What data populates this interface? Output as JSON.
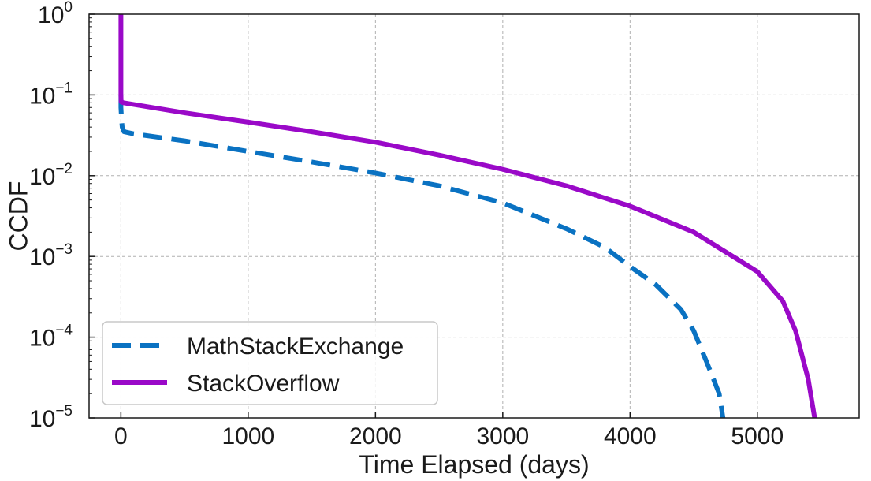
{
  "chart_data": {
    "type": "line",
    "title": "",
    "xlabel": "Time Elapsed (days)",
    "ylabel": "CCDF",
    "xlim": [
      -250,
      5800
    ],
    "ylim": [
      1e-05,
      1
    ],
    "yscale": "log",
    "grid": true,
    "legend_position": "lower-left",
    "x_ticks": [
      0,
      1000,
      2000,
      3000,
      4000,
      5000
    ],
    "x_tick_labels": [
      "0",
      "1000",
      "2000",
      "3000",
      "4000",
      "5000"
    ],
    "y_ticks": [
      1,
      0.1,
      0.01,
      0.001,
      0.0001,
      1e-05
    ],
    "y_tick_bases": [
      "10",
      "10",
      "10",
      "10",
      "10",
      "10"
    ],
    "y_tick_exponents": [
      "0",
      "−1",
      "−2",
      "−3",
      "−4",
      "−5"
    ],
    "series": [
      {
        "name": "MathStackExchange",
        "color": "#0a72c2",
        "style": "dashed",
        "points": [
          [
            0,
            0.1
          ],
          [
            0,
            0.07
          ],
          [
            5,
            0.05
          ],
          [
            10,
            0.04
          ],
          [
            25,
            0.035
          ],
          [
            100,
            0.033
          ],
          [
            500,
            0.027
          ],
          [
            1000,
            0.02
          ],
          [
            1500,
            0.0148
          ],
          [
            2000,
            0.0108
          ],
          [
            2500,
            0.0075
          ],
          [
            3000,
            0.0046
          ],
          [
            3500,
            0.0022
          ],
          [
            3800,
            0.0013
          ],
          [
            4000,
            0.00075
          ],
          [
            4200,
            0.00045
          ],
          [
            4400,
            0.00022
          ],
          [
            4500,
            0.00012
          ],
          [
            4600,
            5e-05
          ],
          [
            4700,
            2e-05
          ],
          [
            4730,
            1e-05
          ]
        ]
      },
      {
        "name": "StackOverflow",
        "color": "#9a09c8",
        "style": "solid",
        "points": [
          [
            0,
            1
          ],
          [
            0,
            0.1
          ],
          [
            2,
            0.082
          ],
          [
            20,
            0.08
          ],
          [
            500,
            0.06
          ],
          [
            1000,
            0.046
          ],
          [
            1500,
            0.035
          ],
          [
            2000,
            0.026
          ],
          [
            2500,
            0.018
          ],
          [
            3000,
            0.012
          ],
          [
            3500,
            0.0075
          ],
          [
            4000,
            0.0042
          ],
          [
            4500,
            0.002
          ],
          [
            5000,
            0.00065
          ],
          [
            5200,
            0.00028
          ],
          [
            5300,
            0.00012
          ],
          [
            5400,
            3e-05
          ],
          [
            5450,
            1e-05
          ]
        ]
      }
    ]
  }
}
